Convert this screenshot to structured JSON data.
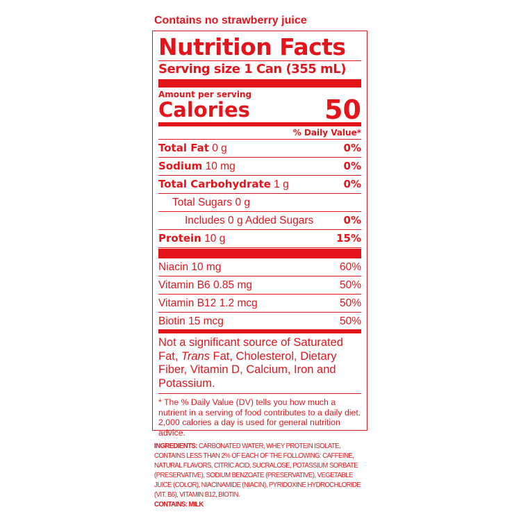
{
  "header_note": "Contains no strawberry juice",
  "label": {
    "title": "Nutrition Facts",
    "serving_size": "Serving size 1 Can (355 mL)",
    "amount_per_serving": "Amount per serving",
    "calories_label": "Calories",
    "calories_value": "50",
    "daily_value_header": "% Daily Value*",
    "nutrients": [
      {
        "name": "Total Fat",
        "amount": "0 g",
        "dv": "0%",
        "bold": true,
        "indent": 0
      },
      {
        "name": "Sodium",
        "amount": "10 mg",
        "dv": "0%",
        "bold": true,
        "indent": 0
      },
      {
        "name": "Total Carbohydrate",
        "amount": "1 g",
        "dv": "0%",
        "bold": true,
        "indent": 0
      },
      {
        "name": "Total Sugars",
        "amount": "0 g",
        "dv": "",
        "bold": false,
        "indent": 1
      },
      {
        "name": "Includes",
        "amount": "0 g Added Sugars",
        "dv": "0%",
        "bold": false,
        "indent": 2
      },
      {
        "name": "Protein",
        "amount": "10 g",
        "dv": "15%",
        "bold": true,
        "indent": 0
      }
    ],
    "vitamins": [
      {
        "name": "Niacin 10 mg",
        "dv": "60%"
      },
      {
        "name": "Vitamin B6 0.85 mg",
        "dv": "50%"
      },
      {
        "name": "Vitamin B12 1.2 mcg",
        "dv": "50%"
      },
      {
        "name": "Biotin 15 mcg",
        "dv": "50%"
      }
    ],
    "not_significant_pre": "Not a significant source of Saturated Fat, ",
    "not_significant_italic": "Trans",
    "not_significant_post": " Fat, Cholesterol, Dietary Fiber, Vitamin D, Calcium, Iron and Potassium.",
    "footnote": "* The % Daily Value (DV) tells you how much a nutrient in a serving of food contributes to a daily diet. 2,000 calories a day is used for general nutrition advice."
  },
  "ingredients": {
    "label": "INGREDIENTS:",
    "text": " CARBONATED WATER, WHEY PROTEIN ISOLATE, CONTAINS LESS THAN 2% OF EACH OF THE FOLLOWING: CAFFEINE, NATURAL FLAVORS, CITRIC ACID, SUCRALOSE, POTASSIUM SORBATE (PRESERVATIVE), SODIUM BENZOATE (PRESERVATIVE), VEGETABLE JUICE (COLOR), NIACINAMIDE (NIACIN), PYRIDOXINE HYDROCHLORIDE (VIT. B6), VITAMIN B12, BIOTIN.",
    "contains": "CONTAINS: MILK"
  },
  "colors": {
    "label_red": "#e3151b"
  }
}
